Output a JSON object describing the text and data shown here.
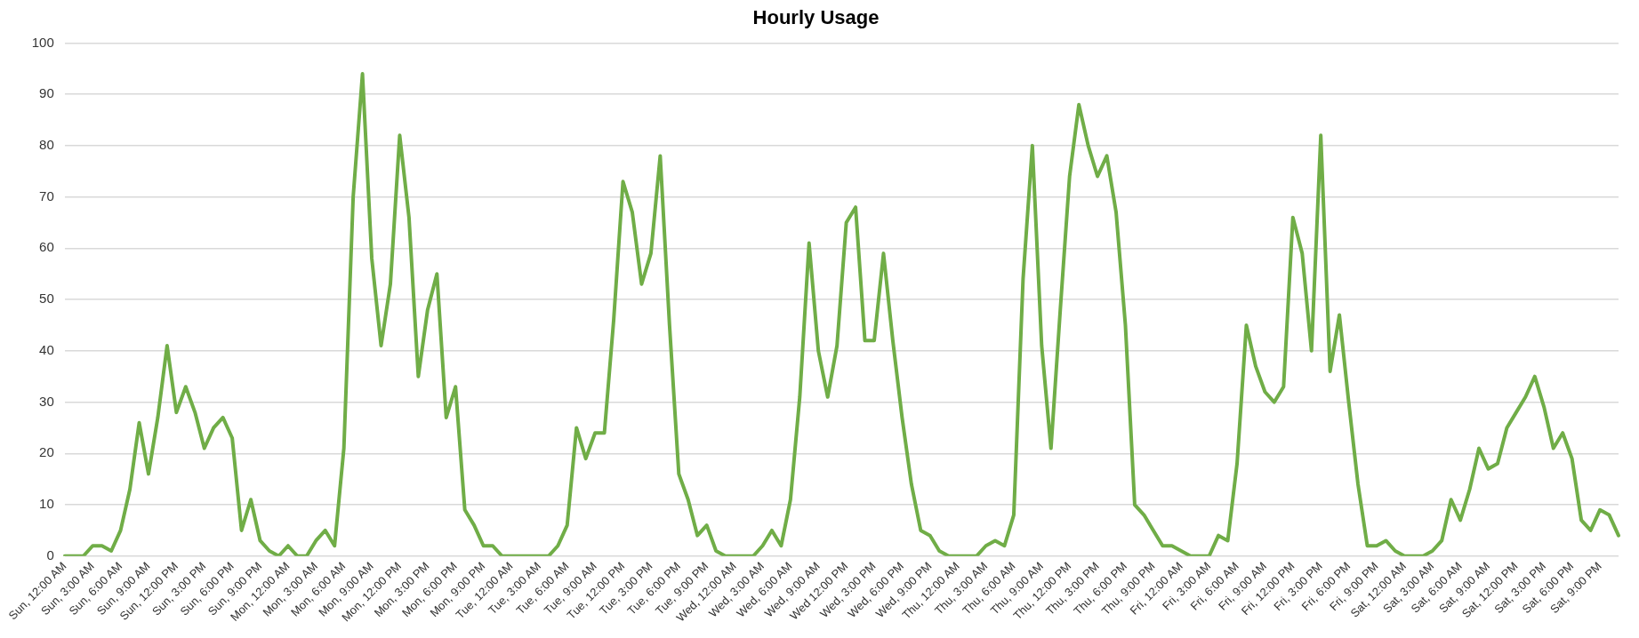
{
  "chart_data": {
    "type": "line",
    "title": "Hourly Usage",
    "categories": [
      "Sun, 12:00 AM",
      null,
      null,
      "Sun, 3:00 AM",
      null,
      null,
      "Sun, 6:00 AM",
      null,
      null,
      "Sun, 9:00 AM",
      null,
      null,
      "Sun, 12:00 PM",
      null,
      null,
      "Sun, 3:00 PM",
      null,
      null,
      "Sun, 6:00 PM",
      null,
      null,
      "Sun, 9:00 PM",
      null,
      null,
      "Mon, 12:00 AM",
      null,
      null,
      "Mon, 3:00 AM",
      null,
      null,
      "Mon, 6:00 AM",
      null,
      null,
      "Mon, 9:00 AM",
      null,
      null,
      "Mon, 12:00 PM",
      null,
      null,
      "Mon, 3:00 PM",
      null,
      null,
      "Mon, 6:00 PM",
      null,
      null,
      "Mon, 9:00 PM",
      null,
      null,
      "Tue, 12:00 AM",
      null,
      null,
      "Tue, 3:00 AM",
      null,
      null,
      "Tue, 6:00 AM",
      null,
      null,
      "Tue, 9:00 AM",
      null,
      null,
      "Tue, 12:00 PM",
      null,
      null,
      "Tue, 3:00 PM",
      null,
      null,
      "Tue, 6:00 PM",
      null,
      null,
      "Tue, 9:00 PM",
      null,
      null,
      "Wed, 12:00 AM",
      null,
      null,
      "Wed, 3:00 AM",
      null,
      null,
      "Wed, 6:00 AM",
      null,
      null,
      "Wed, 9:00 AM",
      null,
      null,
      "Wed 12:00 PM",
      null,
      null,
      "Wed, 3:00 PM",
      null,
      null,
      "Wed, 6:00 PM",
      null,
      null,
      "Wed, 9:00 PM",
      null,
      null,
      "Thu, 12:00 AM",
      null,
      null,
      "Thu, 3:00 AM",
      null,
      null,
      "Thu, 6:00 AM",
      null,
      null,
      "Thu, 9:00 AM",
      null,
      null,
      "Thu, 12:00 PM",
      null,
      null,
      "Thu, 3:00 PM",
      null,
      null,
      "Thu, 6:00 PM",
      null,
      null,
      "Thu, 9:00 PM",
      null,
      null,
      "Fri, 12:00 AM",
      null,
      null,
      "Fri, 3:00 AM",
      null,
      null,
      "Fri, 6:00 AM",
      null,
      null,
      "Fri, 9:00 AM",
      null,
      null,
      "Fri, 12:00 PM",
      null,
      null,
      "Fri, 3:00 PM",
      null,
      null,
      "Fri, 6:00 PM",
      null,
      null,
      "Fri, 9:00 PM",
      null,
      null,
      "Sat, 12:00 AM",
      null,
      null,
      "Sat, 3:00 AM",
      null,
      null,
      "Sat, 6:00 AM",
      null,
      null,
      "Sat, 9:00 AM",
      null,
      null,
      "Sat, 12:00 PM",
      null,
      null,
      "Sat, 3:00 PM",
      null,
      null,
      "Sat, 6:00 PM",
      null,
      null,
      "Sat, 9:00 PM",
      null,
      null
    ],
    "series": [
      {
        "color": "#70ad47",
        "values": [
          0,
          0,
          0,
          2,
          2,
          1,
          5,
          13,
          26,
          16,
          27,
          41,
          28,
          33,
          28,
          21,
          25,
          27,
          23,
          5,
          11,
          3,
          1,
          0,
          2,
          0,
          0,
          3,
          5,
          2,
          21,
          70,
          94,
          58,
          41,
          53,
          82,
          66,
          35,
          48,
          55,
          27,
          33,
          9,
          6,
          2,
          2,
          0,
          0,
          0,
          0,
          0,
          0,
          2,
          6,
          25,
          19,
          24,
          24,
          46,
          73,
          67,
          53,
          59,
          78,
          45,
          16,
          11,
          4,
          6,
          1,
          0,
          0,
          0,
          0,
          2,
          5,
          2,
          11,
          31,
          61,
          40,
          31,
          41,
          65,
          68,
          42,
          42,
          59,
          42,
          27,
          14,
          5,
          4,
          1,
          0,
          0,
          0,
          0,
          2,
          3,
          2,
          8,
          54,
          80,
          41,
          21,
          48,
          74,
          88,
          80,
          74,
          78,
          67,
          45,
          10,
          8,
          5,
          2,
          2,
          1,
          0,
          0,
          0,
          4,
          3,
          18,
          45,
          37,
          32,
          30,
          33,
          66,
          59,
          40,
          82,
          36,
          47,
          30,
          14,
          2,
          2,
          3,
          1,
          0,
          0,
          0,
          1,
          3,
          11,
          7,
          13,
          21,
          17,
          18,
          25,
          28,
          31,
          35,
          29,
          21,
          24,
          19,
          7,
          5,
          9,
          8,
          4
        ]
      }
    ],
    "ylim": [
      0,
      100
    ],
    "yticks": [
      0,
      10,
      20,
      30,
      40,
      50,
      60,
      70,
      80,
      90,
      100
    ],
    "grid": "y",
    "marker": "none",
    "line_style": "solid",
    "legend": false
  }
}
